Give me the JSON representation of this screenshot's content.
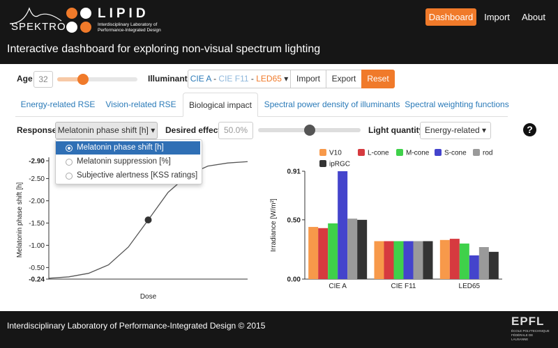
{
  "header": {
    "logo_spektro": "SPEKTRO",
    "logo_lipid": "LIPID",
    "logo_lipid_sub": "Interdisciplinary Laboratory of Performance-Integrated Design",
    "title": "Interactive dashboard for exploring non-visual spectrum lighting",
    "nav": [
      "Dashboard",
      "Import",
      "About"
    ]
  },
  "controls": {
    "age_label": "Age",
    "age_value": "32",
    "illuminants_label": "Illuminants",
    "illuminants": [
      {
        "name": "CIE A",
        "color": "#2a7ab8"
      },
      {
        "name": "CIE F11",
        "color": "#8fb8dc"
      },
      {
        "name": "LED65",
        "color": "#f07a2a"
      }
    ],
    "illuminant_separator": "-",
    "buttons": [
      "Import",
      "Export",
      "Reset"
    ]
  },
  "tabs": [
    "Energy-related RSE",
    "Vision-related RSE",
    "Biological impact",
    "Spectral power density of illuminants",
    "Spectral weighting functions"
  ],
  "response": {
    "label": "Response",
    "selected": "Melatonin phase shift [h]",
    "options": [
      "Melatonin phase shift [h]",
      "Melatonin suppression [%]",
      "Subjective alertness [KSS ratings]"
    ],
    "desired_effect_label": "Desired effect",
    "desired_effect_value": "50.0%",
    "light_quantity_label": "Light quantity",
    "light_quantity_value": "Energy-related",
    "help": "?"
  },
  "chart_data": [
    {
      "type": "line",
      "xlabel": "Dose",
      "ylabel": "Melatonin phase shift [h]",
      "x": [
        0,
        0.1,
        0.2,
        0.3,
        0.4,
        0.5,
        0.6,
        0.7,
        0.8,
        0.9,
        1.0
      ],
      "values": [
        -0.26,
        -0.29,
        -0.37,
        -0.56,
        -0.96,
        -1.57,
        -2.19,
        -2.58,
        -2.78,
        -2.85,
        -2.88
      ],
      "color": "#555555",
      "marker": {
        "x": 0.5,
        "y": -1.57
      },
      "xlim": [
        0,
        1.0
      ],
      "ylim": [
        -0.24,
        -2.9
      ],
      "yticks": [
        {
          "value": -2.9,
          "label": "-2.90"
        },
        {
          "value": -2.5,
          "label": "-2.50"
        },
        {
          "value": -2.0,
          "label": "-2.00"
        },
        {
          "value": -1.5,
          "label": "-1.50"
        },
        {
          "value": -1.0,
          "label": "-1.00"
        },
        {
          "value": -0.5,
          "label": "-0.50"
        },
        -0.24
      ]
    },
    {
      "type": "bar",
      "ylabel": "Irradiance [W/m²]",
      "categories": [
        "CIE A",
        "CIE F11",
        "LED65"
      ],
      "series": [
        {
          "name": "V10",
          "color": "#f7994a",
          "values": [
            0.44,
            0.32,
            0.33
          ]
        },
        {
          "name": "L-cone",
          "color": "#d63a3f",
          "values": [
            0.43,
            0.32,
            0.34
          ]
        },
        {
          "name": "M-cone",
          "color": "#3fd14a",
          "values": [
            0.47,
            0.32,
            0.3
          ]
        },
        {
          "name": "S-cone",
          "color": "#4444cc",
          "values": [
            0.91,
            0.32,
            0.2
          ]
        },
        {
          "name": "rod",
          "color": "#9a9a9a",
          "values": [
            0.51,
            0.32,
            0.27
          ]
        },
        {
          "name": "ipRGC",
          "color": "#333333",
          "values": [
            0.5,
            0.32,
            0.23
          ]
        }
      ],
      "ylim": [
        0,
        0.91
      ],
      "yticks": [
        {
          "value": 0,
          "label": "0.00"
        },
        {
          "value": 0.5,
          "label": "0.50"
        },
        0.91
      ]
    }
  ],
  "footer": {
    "text": "Interdisciplinary Laboratory of Performance-Integrated Design © 2015",
    "logo": "EPFL",
    "logo_sub": "ÉCOLE POLYTECHNIQUE FÉDÉRALE DE LAUSANNE"
  }
}
